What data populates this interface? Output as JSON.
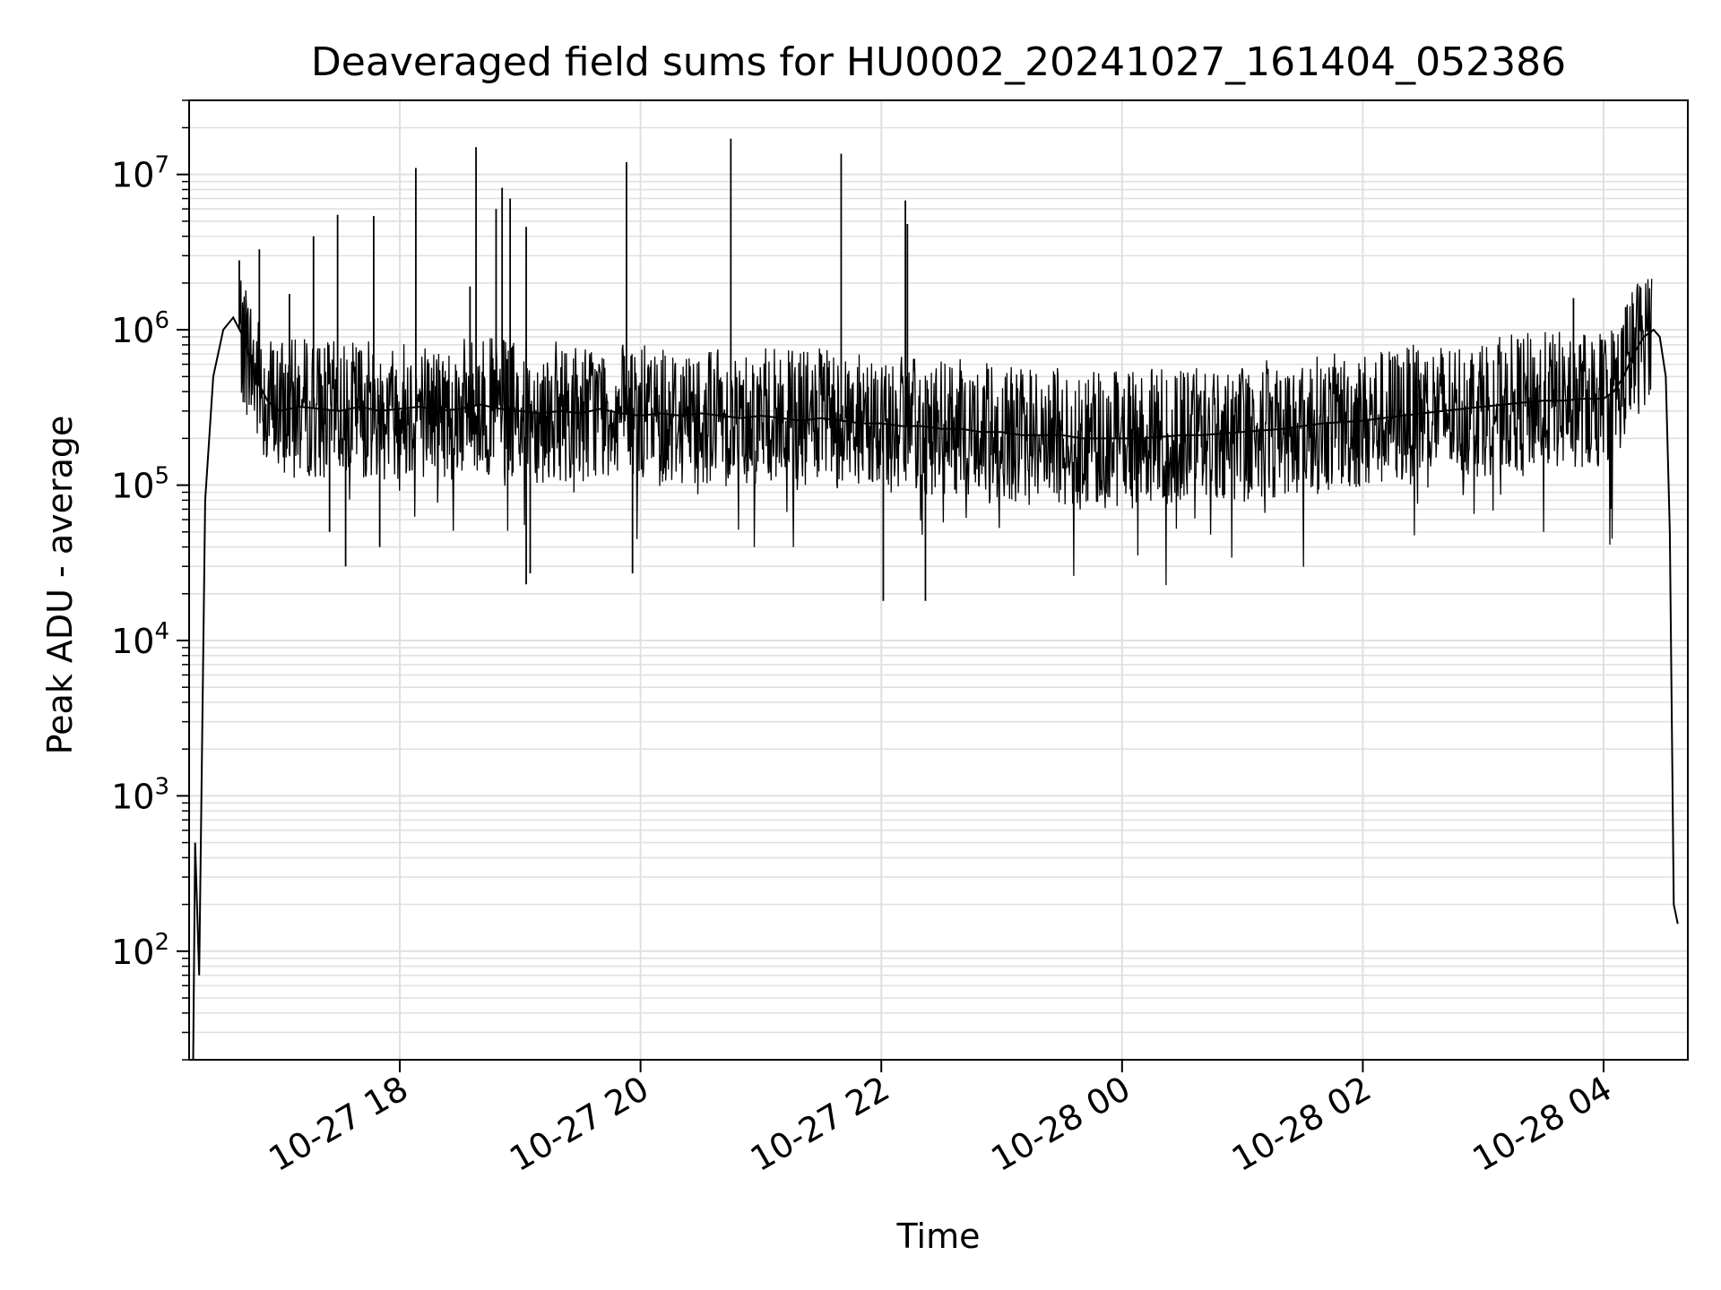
{
  "chart_data": {
    "type": "line",
    "title": "Deaveraged field sums for HU0002_20241027_161404_052386",
    "xlabel": "Time",
    "ylabel": "Peak ADU - average",
    "yscale": "log",
    "ylim": [
      20,
      30000000
    ],
    "xlim": [
      "2024-10-27 16:15",
      "2024-10-28 04:42"
    ],
    "grid": true,
    "line_color": "#000000",
    "grid_color": "#e0e0e0",
    "x_tick_labels": [
      "10-27 18",
      "10-27 20",
      "10-27 22",
      "10-28 00",
      "10-28 02",
      "10-28 04"
    ],
    "x_ticks": [
      "2024-10-27 18:00",
      "2024-10-27 20:00",
      "2024-10-27 22:00",
      "2024-10-28 00:00",
      "2024-10-28 02:00",
      "2024-10-28 04:00"
    ],
    "y_ticks": [
      {
        "base": "10",
        "exp": "2",
        "value": 100
      },
      {
        "base": "10",
        "exp": "3",
        "value": 1000
      },
      {
        "base": "10",
        "exp": "4",
        "value": 10000
      },
      {
        "base": "10",
        "exp": "5",
        "value": 100000
      },
      {
        "base": "10",
        "exp": "6",
        "value": 1000000
      },
      {
        "base": "10",
        "exp": "7",
        "value": 10000000
      }
    ],
    "series": [
      {
        "x": [
          "2024-10-27 16:17",
          "2024-10-27 16:18",
          "2024-10-27 16:20",
          "2024-10-27 16:23",
          "2024-10-27 16:27",
          "2024-10-27 16:32",
          "2024-10-27 16:37",
          "2024-10-27 16:42",
          "2024-10-27 16:48",
          "2024-10-27 16:54",
          "2024-10-27 17:00",
          "2024-10-27 17:10",
          "2024-10-27 17:20",
          "2024-10-27 17:30",
          "2024-10-27 17:40",
          "2024-10-27 17:50",
          "2024-10-27 18:00",
          "2024-10-27 18:10",
          "2024-10-27 18:20",
          "2024-10-27 18:30",
          "2024-10-27 18:40",
          "2024-10-27 18:50",
          "2024-10-27 19:00",
          "2024-10-27 19:10",
          "2024-10-27 19:20",
          "2024-10-27 19:30",
          "2024-10-27 19:40",
          "2024-10-27 19:50",
          "2024-10-27 20:00",
          "2024-10-27 20:10",
          "2024-10-27 20:20",
          "2024-10-27 20:30",
          "2024-10-27 20:40",
          "2024-10-27 20:50",
          "2024-10-27 21:00",
          "2024-10-27 21:10",
          "2024-10-27 21:20",
          "2024-10-27 21:30",
          "2024-10-27 21:40",
          "2024-10-27 21:50",
          "2024-10-27 22:00",
          "2024-10-27 22:10",
          "2024-10-27 22:20",
          "2024-10-27 22:30",
          "2024-10-27 22:40",
          "2024-10-27 22:50",
          "2024-10-27 23:00",
          "2024-10-27 23:10",
          "2024-10-27 23:20",
          "2024-10-27 23:30",
          "2024-10-27 23:40",
          "2024-10-27 23:50",
          "2024-10-28 00:00",
          "2024-10-28 00:10",
          "2024-10-28 00:20",
          "2024-10-28 00:30",
          "2024-10-28 00:40",
          "2024-10-28 00:50",
          "2024-10-28 01:00",
          "2024-10-28 01:10",
          "2024-10-28 01:20",
          "2024-10-28 01:30",
          "2024-10-28 01:40",
          "2024-10-28 01:50",
          "2024-10-28 02:00",
          "2024-10-28 02:10",
          "2024-10-28 02:20",
          "2024-10-28 02:30",
          "2024-10-28 02:40",
          "2024-10-28 02:50",
          "2024-10-28 03:00",
          "2024-10-28 03:10",
          "2024-10-28 03:20",
          "2024-10-28 03:30",
          "2024-10-28 03:40",
          "2024-10-28 03:50",
          "2024-10-28 04:00",
          "2024-10-28 04:05",
          "2024-10-28 04:10",
          "2024-10-28 04:15",
          "2024-10-28 04:20",
          "2024-10-28 04:25",
          "2024-10-28 04:28",
          "2024-10-28 04:31",
          "2024-10-28 04:33",
          "2024-10-28 04:35",
          "2024-10-28 04:37"
        ],
        "y": [
          20,
          500,
          70,
          80000,
          500000,
          1000000,
          1200000,
          900000,
          500000,
          350000,
          300000,
          320000,
          310000,
          300000,
          320000,
          300000,
          310000,
          320000,
          300000,
          310000,
          330000,
          310000,
          300000,
          290000,
          300000,
          290000,
          310000,
          290000,
          280000,
          290000,
          280000,
          290000,
          280000,
          270000,
          280000,
          270000,
          260000,
          270000,
          260000,
          250000,
          250000,
          240000,
          240000,
          230000,
          230000,
          220000,
          220000,
          210000,
          210000,
          210000,
          200000,
          200000,
          200000,
          200000,
          205000,
          210000,
          210000,
          215000,
          220000,
          225000,
          230000,
          240000,
          250000,
          255000,
          260000,
          270000,
          280000,
          290000,
          300000,
          310000,
          320000,
          330000,
          340000,
          350000,
          350000,
          360000,
          360000,
          400000,
          500000,
          700000,
          900000,
          1000000,
          900000,
          500000,
          50000,
          200,
          150
        ]
      }
    ],
    "spikes": [
      {
        "x": "2024-10-27 16:40",
        "y": 2800000,
        "low": 600000
      },
      {
        "x": "2024-10-27 16:50",
        "y": 3300000,
        "low": 500000
      },
      {
        "x": "2024-10-27 17:05",
        "y": 1700000,
        "low": 300000
      },
      {
        "x": "2024-10-27 17:17",
        "y": 4000000,
        "low": 100000
      },
      {
        "x": "2024-10-27 17:25",
        "y": 50000,
        "low": 50000
      },
      {
        "x": "2024-10-27 17:29",
        "y": 5500000,
        "low": 100000
      },
      {
        "x": "2024-10-27 17:33",
        "y": 30000,
        "low": 30000
      },
      {
        "x": "2024-10-27 17:47",
        "y": 5400000,
        "low": 100000
      },
      {
        "x": "2024-10-27 17:50",
        "y": 40000,
        "low": 40000
      },
      {
        "x": "2024-10-27 18:08",
        "y": 11000000,
        "low": 100000
      },
      {
        "x": "2024-10-27 18:35",
        "y": 1900000,
        "low": 200000
      },
      {
        "x": "2024-10-27 18:38",
        "y": 15000000,
        "low": 100000
      },
      {
        "x": "2024-10-27 18:48",
        "y": 6000000,
        "low": 100000
      },
      {
        "x": "2024-10-27 18:51",
        "y": 8200000,
        "low": 100000
      },
      {
        "x": "2024-10-27 18:55",
        "y": 7000000,
        "low": 100000
      },
      {
        "x": "2024-10-27 19:03",
        "y": 4600000,
        "low": 100000
      },
      {
        "x": "2024-10-27 19:03",
        "y": 23000,
        "low": 23000
      },
      {
        "x": "2024-10-27 19:05",
        "y": 27000,
        "low": 27000
      },
      {
        "x": "2024-10-27 19:53",
        "y": 12000000,
        "low": 100000
      },
      {
        "x": "2024-10-27 19:56",
        "y": 27000,
        "low": 27000
      },
      {
        "x": "2024-10-27 20:45",
        "y": 17000000,
        "low": 100000
      },
      {
        "x": "2024-10-27 21:40",
        "y": 13600000,
        "low": 100000
      },
      {
        "x": "2024-10-27 22:01",
        "y": 18000,
        "low": 18000
      },
      {
        "x": "2024-10-27 22:12",
        "y": 6800000,
        "low": 100000
      },
      {
        "x": "2024-10-27 22:13",
        "y": 4800000,
        "low": 100000
      },
      {
        "x": "2024-10-27 22:22",
        "y": 18000,
        "low": 18000
      },
      {
        "x": "2024-10-28 03:45",
        "y": 1600000,
        "low": 200000
      },
      {
        "x": "2024-10-28 04:11",
        "y": 1400000,
        "low": 200000
      }
    ]
  }
}
